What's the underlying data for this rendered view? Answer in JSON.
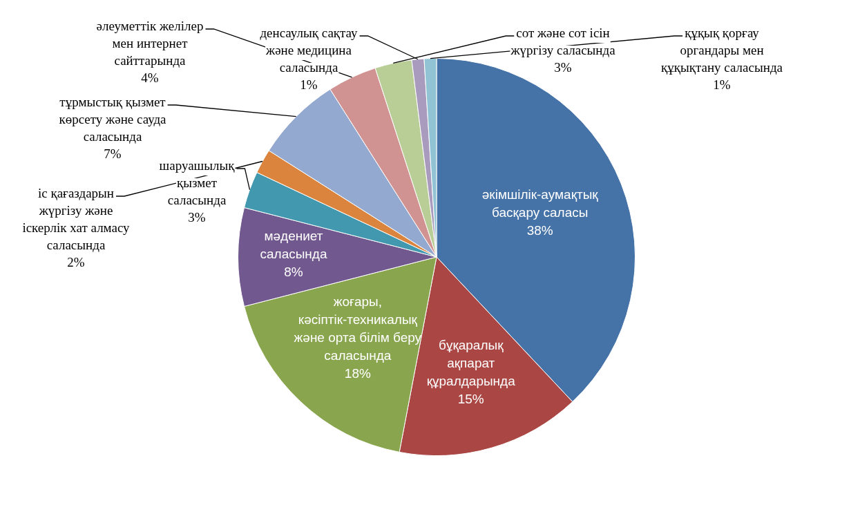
{
  "chart_data": {
    "type": "pie",
    "categories": [
      "әкімшілік-аумақтық басқару саласы",
      "бұқаралық ақпарат құралдарында",
      "жоғары, кәсіптік-техникалық және орта білім беру саласында",
      "мәдениет саласында",
      "шаруашылық қызмет саласында",
      "іс қағаздарын жүргізу және іскерлік хат алмасу саласында",
      "тұрмыстық қызмет көрсету және сауда саласында",
      "әлеуметтік желілер мен интернет сайттарында",
      "сот және сот ісін жүргізу саласында",
      "денсаулық сақтау және медицина саласында",
      "құқық қорғау органдары мен құқықтану саласында"
    ],
    "values": [
      38,
      15,
      18,
      8,
      3,
      2,
      7,
      4,
      3,
      1,
      1
    ],
    "value_labels": [
      "38%",
      "15%",
      "18%",
      "8%",
      "3%",
      "2%",
      "7%",
      "4%",
      "3%",
      "1%",
      "1%"
    ],
    "colors": [
      "#4572a7",
      "#aa4643",
      "#89a54e",
      "#71588f",
      "#4198af",
      "#db843d",
      "#93a9cf",
      "#d19392",
      "#b9cd96",
      "#a99bbd",
      "#92c3d4"
    ],
    "legend": false
  }
}
